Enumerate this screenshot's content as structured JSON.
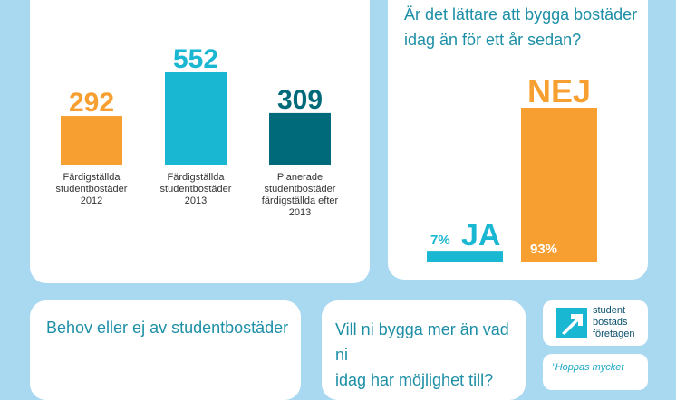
{
  "colors": {
    "background": "#a9d8f1",
    "orange": "#f7a031",
    "cyan": "#1ab7d2",
    "teal": "#006a7a",
    "heading": "#1d8fa6"
  },
  "chart_data": [
    {
      "type": "bar",
      "title": "",
      "categories": [
        [
          "Färdigställda",
          "studentbostäder",
          "2012"
        ],
        [
          "Färdigställda",
          "studentbostäder",
          "2013"
        ],
        [
          "Planerade",
          "studentbostäder",
          "färdigställda efter",
          "2013"
        ]
      ],
      "values": [
        292,
        552,
        309
      ],
      "value_labels": [
        "292",
        "552",
        "309"
      ],
      "colors": [
        "#f7a031",
        "#1ab7d2",
        "#006a7a"
      ],
      "ylim": [
        0,
        552
      ]
    },
    {
      "type": "bar",
      "title": "Är det lättare att bygga bostäder idag än för ett år sedan?",
      "categories": [
        "JA",
        "NEJ"
      ],
      "values": [
        7,
        93
      ],
      "value_labels": [
        "7%",
        "93%"
      ],
      "units": "%",
      "colors": [
        "#1ab7d2",
        "#f7a031"
      ],
      "ylim": [
        0,
        93
      ]
    }
  ],
  "sections": {
    "janej_title_lines": [
      "Är det lättare att bygga bostäder",
      "idag än för ett år sedan?"
    ],
    "behov_title": "Behov eller ej av studentbostäder",
    "vill_title_lines": [
      "Vill ni bygga mer än vad ni",
      "idag har möjlighet till?"
    ]
  },
  "logo": {
    "lines": [
      "student",
      "bostads",
      "företagen"
    ],
    "icon": "arrow-logo-icon"
  },
  "quote": {
    "text": "”Hoppas mycket"
  }
}
